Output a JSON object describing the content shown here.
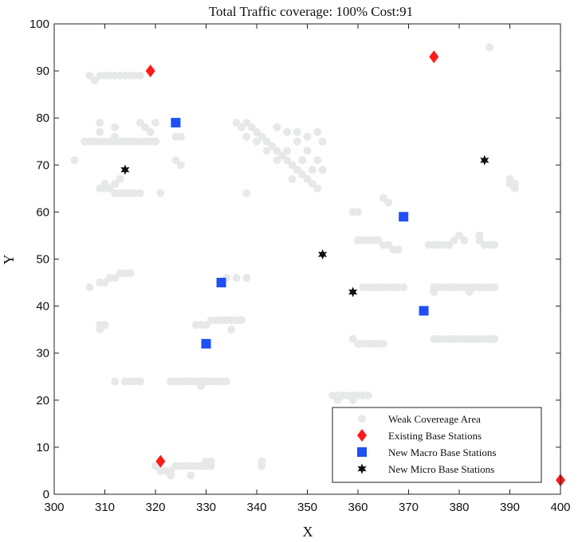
{
  "chart_data": {
    "type": "scatter",
    "title": "Total Traffic coverage: 100%  Cost:91",
    "xlabel": "X",
    "ylabel": "Y",
    "xlim": [
      300,
      400
    ],
    "ylim": [
      0,
      100
    ],
    "xticks": [
      300,
      310,
      320,
      330,
      340,
      350,
      360,
      370,
      380,
      390,
      400
    ],
    "yticks": [
      0,
      10,
      20,
      30,
      40,
      50,
      60,
      70,
      80,
      90,
      100
    ],
    "grid": false,
    "legend_position": "bottom-right",
    "series": [
      {
        "name": "Weak Covereage Area",
        "marker": "circle",
        "color": "#e6e9e8",
        "points": [
          [
            304,
            71
          ],
          [
            307,
            89
          ],
          [
            308,
            88
          ],
          [
            309,
            89
          ],
          [
            310,
            89
          ],
          [
            311,
            89
          ],
          [
            312,
            89
          ],
          [
            313,
            89
          ],
          [
            314,
            89
          ],
          [
            315,
            89
          ],
          [
            316,
            89
          ],
          [
            317,
            89
          ],
          [
            306,
            75
          ],
          [
            307,
            75
          ],
          [
            308,
            75
          ],
          [
            309,
            75
          ],
          [
            310,
            75
          ],
          [
            311,
            75
          ],
          [
            312,
            75
          ],
          [
            313,
            75
          ],
          [
            314,
            75
          ],
          [
            315,
            75
          ],
          [
            316,
            75
          ],
          [
            317,
            75
          ],
          [
            318,
            75
          ],
          [
            319,
            75
          ],
          [
            320,
            75
          ],
          [
            309,
            79
          ],
          [
            309,
            77
          ],
          [
            312,
            78
          ],
          [
            312,
            76
          ],
          [
            317,
            79
          ],
          [
            318,
            78
          ],
          [
            319,
            77
          ],
          [
            320,
            79
          ],
          [
            324,
            76
          ],
          [
            325,
            76
          ],
          [
            324,
            71
          ],
          [
            325,
            70
          ],
          [
            309,
            65
          ],
          [
            310,
            65
          ],
          [
            311,
            65
          ],
          [
            312,
            64
          ],
          [
            313,
            64
          ],
          [
            314,
            64
          ],
          [
            315,
            64
          ],
          [
            316,
            64
          ],
          [
            317,
            64
          ],
          [
            321,
            64
          ],
          [
            310,
            66
          ],
          [
            312,
            66
          ],
          [
            313,
            67
          ],
          [
            307,
            44
          ],
          [
            309,
            45
          ],
          [
            310,
            45
          ],
          [
            311,
            46
          ],
          [
            312,
            46
          ],
          [
            313,
            47
          ],
          [
            314,
            47
          ],
          [
            315,
            47
          ],
          [
            309,
            36
          ],
          [
            310,
            36
          ],
          [
            309,
            35
          ],
          [
            312,
            24
          ],
          [
            314,
            24
          ],
          [
            315,
            24
          ],
          [
            316,
            24
          ],
          [
            317,
            24
          ],
          [
            323,
            24
          ],
          [
            324,
            24
          ],
          [
            325,
            24
          ],
          [
            326,
            24
          ],
          [
            327,
            24
          ],
          [
            328,
            24
          ],
          [
            329,
            24
          ],
          [
            330,
            24
          ],
          [
            331,
            24
          ],
          [
            332,
            24
          ],
          [
            333,
            24
          ],
          [
            334,
            24
          ],
          [
            329,
            23
          ],
          [
            328,
            36
          ],
          [
            329,
            36
          ],
          [
            330,
            36
          ],
          [
            331,
            37
          ],
          [
            332,
            37
          ],
          [
            333,
            37
          ],
          [
            334,
            37
          ],
          [
            335,
            37
          ],
          [
            336,
            37
          ],
          [
            337,
            37
          ],
          [
            335,
            35
          ],
          [
            334,
            46
          ],
          [
            336,
            46
          ],
          [
            338,
            46
          ],
          [
            338,
            64
          ],
          [
            320,
            6
          ],
          [
            321,
            5
          ],
          [
            322,
            5
          ],
          [
            323,
            5
          ],
          [
            324,
            6
          ],
          [
            325,
            6
          ],
          [
            326,
            6
          ],
          [
            327,
            6
          ],
          [
            328,
            6
          ],
          [
            329,
            6
          ],
          [
            330,
            6
          ],
          [
            331,
            6
          ],
          [
            330,
            7
          ],
          [
            331,
            7
          ],
          [
            323,
            4
          ],
          [
            327,
            4
          ],
          [
            341,
            6
          ],
          [
            341,
            7
          ],
          [
            336,
            79
          ],
          [
            337,
            78
          ],
          [
            338,
            79
          ],
          [
            339,
            78
          ],
          [
            340,
            77
          ],
          [
            341,
            76
          ],
          [
            342,
            75
          ],
          [
            343,
            74
          ],
          [
            344,
            73
          ],
          [
            345,
            72
          ],
          [
            346,
            71
          ],
          [
            347,
            70
          ],
          [
            348,
            69
          ],
          [
            349,
            68
          ],
          [
            350,
            67
          ],
          [
            351,
            66
          ],
          [
            352,
            65
          ],
          [
            338,
            76
          ],
          [
            340,
            75
          ],
          [
            342,
            73
          ],
          [
            344,
            71
          ],
          [
            346,
            73
          ],
          [
            348,
            75
          ],
          [
            350,
            73
          ],
          [
            352,
            71
          ],
          [
            353,
            69
          ],
          [
            353,
            75
          ],
          [
            352,
            77
          ],
          [
            350,
            76
          ],
          [
            346,
            77
          ],
          [
            344,
            78
          ],
          [
            348,
            77
          ],
          [
            351,
            69
          ],
          [
            349,
            71
          ],
          [
            347,
            67
          ],
          [
            355,
            21
          ],
          [
            356,
            21
          ],
          [
            357,
            21
          ],
          [
            358,
            21
          ],
          [
            359,
            21
          ],
          [
            360,
            21
          ],
          [
            361,
            21
          ],
          [
            362,
            21
          ],
          [
            356,
            20
          ],
          [
            359,
            20
          ],
          [
            359,
            33
          ],
          [
            360,
            32
          ],
          [
            361,
            32
          ],
          [
            362,
            32
          ],
          [
            363,
            32
          ],
          [
            364,
            32
          ],
          [
            365,
            32
          ],
          [
            359,
            60
          ],
          [
            360,
            60
          ],
          [
            360,
            54
          ],
          [
            361,
            54
          ],
          [
            362,
            54
          ],
          [
            363,
            54
          ],
          [
            364,
            54
          ],
          [
            365,
            53
          ],
          [
            366,
            53
          ],
          [
            367,
            52
          ],
          [
            368,
            52
          ],
          [
            365,
            63
          ],
          [
            366,
            62
          ],
          [
            361,
            44
          ],
          [
            362,
            44
          ],
          [
            363,
            44
          ],
          [
            364,
            44
          ],
          [
            365,
            44
          ],
          [
            366,
            44
          ],
          [
            367,
            44
          ],
          [
            368,
            44
          ],
          [
            369,
            44
          ],
          [
            375,
            44
          ],
          [
            376,
            44
          ],
          [
            377,
            44
          ],
          [
            378,
            44
          ],
          [
            379,
            44
          ],
          [
            380,
            44
          ],
          [
            381,
            44
          ],
          [
            382,
            44
          ],
          [
            383,
            44
          ],
          [
            384,
            44
          ],
          [
            385,
            44
          ],
          [
            386,
            44
          ],
          [
            387,
            44
          ],
          [
            382,
            43
          ],
          [
            375,
            43
          ],
          [
            374,
            53
          ],
          [
            375,
            53
          ],
          [
            376,
            53
          ],
          [
            377,
            53
          ],
          [
            378,
            53
          ],
          [
            379,
            54
          ],
          [
            380,
            55
          ],
          [
            381,
            54
          ],
          [
            384,
            55
          ],
          [
            384,
            54
          ],
          [
            385,
            53
          ],
          [
            386,
            53
          ],
          [
            387,
            53
          ],
          [
            375,
            33
          ],
          [
            376,
            33
          ],
          [
            377,
            33
          ],
          [
            378,
            33
          ],
          [
            379,
            33
          ],
          [
            380,
            33
          ],
          [
            381,
            33
          ],
          [
            382,
            33
          ],
          [
            383,
            33
          ],
          [
            384,
            33
          ],
          [
            385,
            33
          ],
          [
            386,
            33
          ],
          [
            387,
            33
          ],
          [
            390,
            67
          ],
          [
            390,
            66
          ],
          [
            391,
            65
          ],
          [
            391,
            66
          ],
          [
            386,
            95
          ]
        ]
      },
      {
        "name": "Existing Base Stations",
        "marker": "diamond",
        "color": "#ff1a1a",
        "points": [
          [
            319,
            90
          ],
          [
            375,
            93
          ],
          [
            321,
            7
          ],
          [
            400,
            3
          ]
        ]
      },
      {
        "name": "New Macro Base Stations",
        "marker": "square",
        "color": "#1f4ff5",
        "points": [
          [
            324,
            79
          ],
          [
            333,
            45
          ],
          [
            330,
            32
          ],
          [
            369,
            59
          ],
          [
            373,
            39
          ]
        ]
      },
      {
        "name": "New Micro Base Stations",
        "marker": "hexagram",
        "color": "#111111",
        "points": [
          [
            314,
            69
          ],
          [
            385,
            71
          ],
          [
            353,
            51
          ],
          [
            359,
            43
          ]
        ]
      }
    ]
  }
}
